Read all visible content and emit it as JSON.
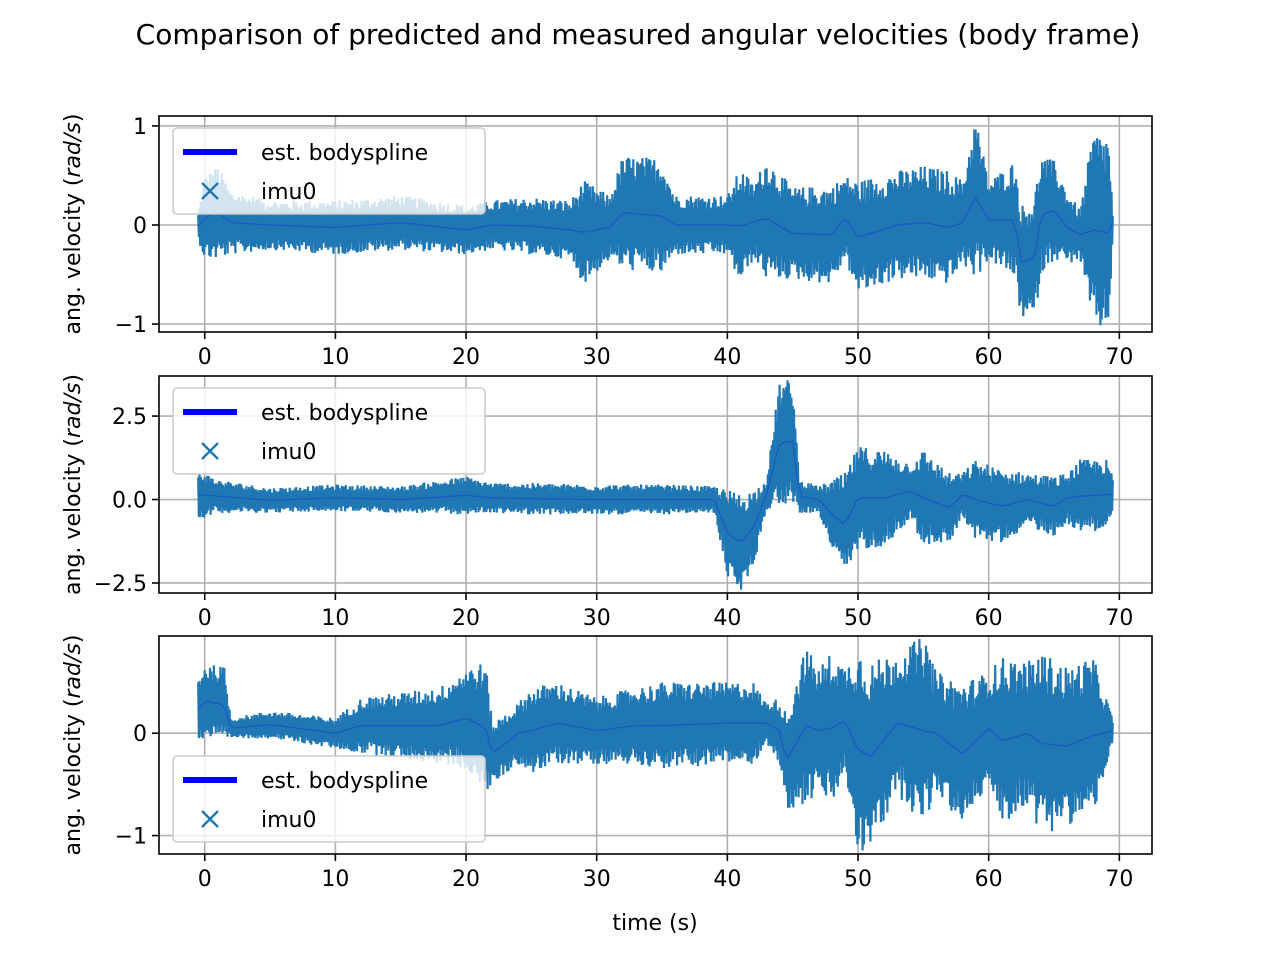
{
  "chart_data": {
    "type": "line",
    "title": "Comparison of predicted and measured angular velocities (body frame)",
    "xlabel": "time (s)",
    "x_ticks": [
      0,
      10,
      20,
      30,
      40,
      50,
      60,
      70
    ],
    "xlim": [
      -3.5,
      72.5
    ],
    "grid": true,
    "series_colors": {
      "est. bodyspline": "#0000ff",
      "imu0": "#1f77b4"
    },
    "subplots": [
      {
        "ylabel_prefix": "ang. velocity (",
        "ylabel_unit": "rad/s",
        "ylabel_suffix": ")",
        "ylim": [
          -1.08,
          1.1
        ],
        "yticks": [
          {
            "v": 1,
            "t": "1"
          },
          {
            "v": 0,
            "t": "0"
          },
          {
            "v": -1,
            "t": "−1"
          }
        ],
        "legend": {
          "placement": "upper-left",
          "entries": [
            "est. bodyspline",
            "imu0"
          ]
        },
        "envelope": [
          [
            -0.5,
            -0.15,
            0.12
          ],
          [
            0,
            -0.35,
            0.5
          ],
          [
            1,
            -0.35,
            0.6
          ],
          [
            2,
            -0.3,
            0.35
          ],
          [
            5,
            -0.25,
            0.25
          ],
          [
            10,
            -0.3,
            0.25
          ],
          [
            15,
            -0.25,
            0.3
          ],
          [
            20,
            -0.3,
            0.2
          ],
          [
            22,
            -0.25,
            0.25
          ],
          [
            25,
            -0.3,
            0.28
          ],
          [
            28,
            -0.35,
            0.25
          ],
          [
            29,
            -0.6,
            0.45
          ],
          [
            31,
            -0.35,
            0.3
          ],
          [
            32,
            -0.45,
            0.7
          ],
          [
            35,
            -0.5,
            0.68
          ],
          [
            36,
            -0.3,
            0.3
          ],
          [
            40,
            -0.3,
            0.3
          ],
          [
            41,
            -0.6,
            0.58
          ],
          [
            42,
            -0.35,
            0.42
          ],
          [
            43,
            -0.55,
            0.68
          ],
          [
            45,
            -0.55,
            0.38
          ],
          [
            48,
            -0.6,
            0.4
          ],
          [
            49,
            -0.35,
            0.5
          ],
          [
            50,
            -0.7,
            0.45
          ],
          [
            53,
            -0.55,
            0.55
          ],
          [
            55,
            -0.55,
            0.6
          ],
          [
            57,
            -0.6,
            0.55
          ],
          [
            58,
            -0.4,
            0.45
          ],
          [
            59,
            -0.55,
            1.1
          ],
          [
            60,
            -0.35,
            0.45
          ],
          [
            62,
            -0.55,
            0.65
          ],
          [
            62.5,
            -0.95,
            0.2
          ],
          [
            63.5,
            -0.98,
            0.3
          ],
          [
            64,
            -0.5,
            0.7
          ],
          [
            65,
            -0.35,
            0.65
          ],
          [
            66,
            -0.4,
            0.35
          ],
          [
            67,
            -0.35,
            0.15
          ],
          [
            68,
            -1.05,
            0.95
          ],
          [
            69.2,
            -1.08,
            0.92
          ],
          [
            69.5,
            -0.05,
            0.1
          ]
        ]
      },
      {
        "ylabel_prefix": "ang. velocity (",
        "ylabel_unit": "rad/s",
        "ylabel_suffix": ")",
        "ylim": [
          -2.8,
          3.7
        ],
        "yticks": [
          {
            "v": 2.5,
            "t": "2.5"
          },
          {
            "v": 0,
            "t": "0.0"
          },
          {
            "v": -2.5,
            "t": "−2.5"
          }
        ],
        "legend": {
          "placement": "upper-left",
          "entries": [
            "est. bodyspline",
            "imu0"
          ]
        },
        "envelope": [
          [
            -0.5,
            -0.6,
            0.9
          ],
          [
            1,
            -0.4,
            0.6
          ],
          [
            5,
            -0.4,
            0.35
          ],
          [
            10,
            -0.35,
            0.45
          ],
          [
            15,
            -0.4,
            0.4
          ],
          [
            20,
            -0.45,
            0.7
          ],
          [
            22,
            -0.4,
            0.5
          ],
          [
            25,
            -0.45,
            0.5
          ],
          [
            30,
            -0.45,
            0.45
          ],
          [
            35,
            -0.45,
            0.45
          ],
          [
            39,
            -0.4,
            0.4
          ],
          [
            40,
            -2.3,
            0.3
          ],
          [
            41,
            -2.8,
            0.2
          ],
          [
            42,
            -2.0,
            0.3
          ],
          [
            43,
            -0.3,
            0.6
          ],
          [
            44,
            -0.2,
            3.6
          ],
          [
            45,
            -0.1,
            3.6
          ],
          [
            45.5,
            -0.4,
            0.6
          ],
          [
            47,
            -0.4,
            0.4
          ],
          [
            48,
            -1.5,
            0.6
          ],
          [
            49,
            -2.3,
            0.8
          ],
          [
            50,
            -1.5,
            1.6
          ],
          [
            52,
            -1.4,
            1.5
          ],
          [
            54,
            -0.6,
            1.1
          ],
          [
            55,
            -1.4,
            1.5
          ],
          [
            57,
            -1.3,
            0.8
          ],
          [
            58,
            -0.5,
            0.8
          ],
          [
            59,
            -1.2,
            1.2
          ],
          [
            61,
            -1.3,
            0.9
          ],
          [
            63,
            -0.8,
            0.8
          ],
          [
            65,
            -1.1,
            0.7
          ],
          [
            66,
            -0.7,
            0.8
          ],
          [
            67,
            -1.0,
            1.2
          ],
          [
            69,
            -0.9,
            1.2
          ],
          [
            69.5,
            -0.4,
            0.7
          ]
        ]
      },
      {
        "ylabel_prefix": "ang. velocity (",
        "ylabel_unit": "rad/s",
        "ylabel_suffix": ")",
        "ylim": [
          -1.18,
          0.95
        ],
        "yticks": [
          {
            "v": 0,
            "t": "0"
          },
          {
            "v": -1,
            "t": "−1"
          }
        ],
        "legend": {
          "placement": "lower-left",
          "entries": [
            "est. bodyspline",
            "imu0"
          ]
        },
        "envelope": [
          [
            -0.5,
            -0.1,
            0.55
          ],
          [
            0,
            -0.05,
            0.68
          ],
          [
            1.5,
            -0.1,
            0.65
          ],
          [
            2,
            -0.05,
            0.15
          ],
          [
            5,
            -0.05,
            0.22
          ],
          [
            10,
            -0.15,
            0.15
          ],
          [
            12,
            -0.2,
            0.35
          ],
          [
            15,
            -0.25,
            0.4
          ],
          [
            18,
            -0.3,
            0.45
          ],
          [
            20,
            -0.35,
            0.65
          ],
          [
            21.5,
            -0.6,
            0.7
          ],
          [
            22,
            -0.5,
            0.1
          ],
          [
            24,
            -0.3,
            0.3
          ],
          [
            25,
            -0.4,
            0.45
          ],
          [
            27,
            -0.3,
            0.5
          ],
          [
            30,
            -0.3,
            0.35
          ],
          [
            33,
            -0.3,
            0.45
          ],
          [
            35,
            -0.35,
            0.5
          ],
          [
            40,
            -0.3,
            0.5
          ],
          [
            42,
            -0.3,
            0.5
          ],
          [
            43,
            -0.1,
            0.3
          ],
          [
            44,
            -0.3,
            0.35
          ],
          [
            44.5,
            -0.75,
            0.2
          ],
          [
            46,
            -0.7,
            0.85
          ],
          [
            47,
            -0.6,
            0.65
          ],
          [
            48,
            -0.7,
            0.8
          ],
          [
            49,
            -0.4,
            0.65
          ],
          [
            50,
            -1.18,
            0.85
          ],
          [
            51,
            -1.15,
            0.7
          ],
          [
            53,
            -0.6,
            0.8
          ],
          [
            55,
            -0.9,
            0.95
          ],
          [
            56,
            -0.6,
            0.6
          ],
          [
            58,
            -0.9,
            0.5
          ],
          [
            60,
            -0.5,
            0.6
          ],
          [
            61,
            -0.9,
            0.75
          ],
          [
            63,
            -0.7,
            0.7
          ],
          [
            64,
            -1.0,
            0.8
          ],
          [
            66,
            -0.9,
            0.65
          ],
          [
            68,
            -0.8,
            0.75
          ],
          [
            69.5,
            -0.1,
            0.15
          ]
        ]
      }
    ]
  }
}
